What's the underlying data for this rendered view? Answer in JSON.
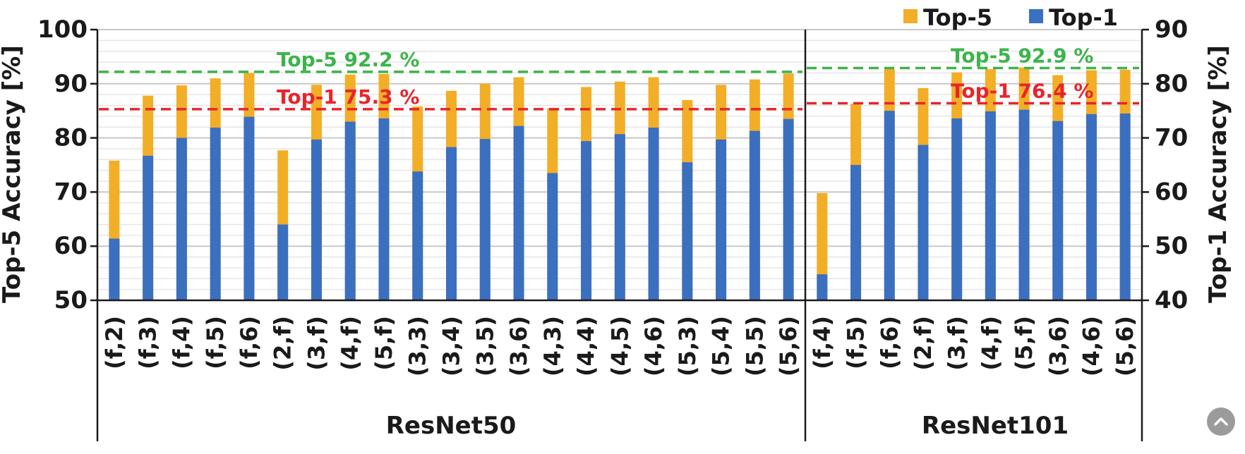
{
  "chart_data": {
    "type": "bar",
    "stacked": true,
    "groups": [
      {
        "name": "ResNet50",
        "categories": [
          "(f,2)",
          "(f,3)",
          "(f,4)",
          "(f,5)",
          "(f,6)",
          "(2,f)",
          "(3,f)",
          "(4,f)",
          "(5,f)",
          "(3,3)",
          "(3,4)",
          "(3,5)",
          "(3,6)",
          "(4,3)",
          "(4,4)",
          "(4,5)",
          "(4,6)",
          "(5,3)",
          "(5,4)",
          "(5,5)",
          "(5,6)"
        ],
        "top5": [
          75.8,
          87.8,
          89.7,
          91.0,
          92.0,
          77.7,
          89.8,
          91.7,
          91.8,
          85.8,
          88.7,
          90.0,
          91.2,
          85.5,
          89.4,
          90.4,
          91.2,
          87.0,
          89.8,
          90.8,
          91.9
        ],
        "top1": [
          51.4,
          66.7,
          70.0,
          71.9,
          73.9,
          54.0,
          69.7,
          73.0,
          73.6,
          63.8,
          68.3,
          69.8,
          72.2,
          63.5,
          69.4,
          70.7,
          71.9,
          65.5,
          69.7,
          71.3,
          73.5
        ],
        "top5_baseline": 92.2,
        "top1_baseline": 75.3,
        "top5_label": "Top-5 92.2 %",
        "top1_label": "Top-1 75.3 %"
      },
      {
        "name": "ResNet101",
        "categories": [
          "(f,4)",
          "(f,5)",
          "(f,6)",
          "(2,f)",
          "(3,f)",
          "(4,f)",
          "(5,f)",
          "(3,6)",
          "(4,6)",
          "(5,6)"
        ],
        "top5": [
          69.8,
          86.3,
          92.7,
          89.2,
          92.1,
          92.7,
          93.0,
          91.6,
          92.5,
          92.6
        ],
        "top1": [
          44.8,
          65.0,
          75.0,
          68.7,
          73.6,
          74.9,
          75.2,
          73.1,
          74.4,
          74.5
        ],
        "top5_baseline": 92.9,
        "top1_baseline": 76.4,
        "top5_label": "Top-5 92.9 %",
        "top1_label": "Top-1 76.4 %"
      }
    ],
    "left_axis": {
      "label": "Top-5 Accuracy [%]",
      "min": 50,
      "max": 100,
      "ticks": [
        "50",
        "60",
        "70",
        "80",
        "90",
        "100"
      ]
    },
    "right_axis": {
      "label": "Top-1 Accuracy [%]",
      "min": 40,
      "max": 90,
      "ticks": [
        "40",
        "50",
        "60",
        "70",
        "80",
        "90"
      ]
    },
    "legend": [
      {
        "name": "Top-5",
        "color": "#f2ae27"
      },
      {
        "name": "Top-1",
        "color": "#3b6fbf"
      }
    ],
    "legend_position": "top-right",
    "grid": true,
    "colors": {
      "top5": "#f2ae27",
      "top1": "#3b6fbf",
      "top5_line": "#3cb44b",
      "top1_line": "#e8242b",
      "grid": "#d9d9d9",
      "axis": "#1a1a1a"
    }
  },
  "ui": {
    "scroll_top_icon": "chevron-up-icon"
  }
}
